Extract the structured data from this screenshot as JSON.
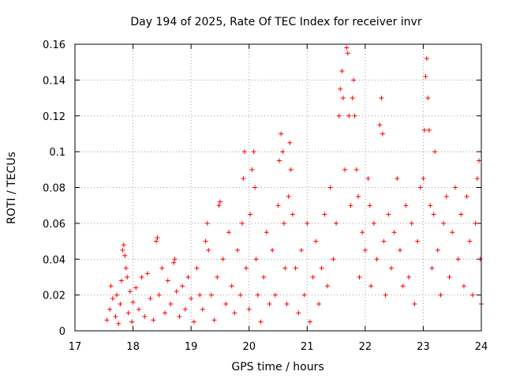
{
  "chart_data": {
    "type": "scatter",
    "title": "Day 194 of 2025, Rate Of TEC Index for receiver invr",
    "xlabel": "GPS time / hours",
    "ylabel": "ROTI / TECUs",
    "xlim": [
      17,
      24
    ],
    "ylim": [
      0,
      0.16
    ],
    "xticks": [
      17,
      18,
      19,
      20,
      21,
      22,
      23,
      24
    ],
    "yticks": [
      0,
      0.02,
      0.04,
      0.06,
      0.08,
      0.1,
      0.12,
      0.14,
      0.16
    ],
    "xtick_labels": [
      "17",
      "18",
      "19",
      "20",
      "21",
      "22",
      "23",
      "24"
    ],
    "ytick_labels": [
      "0",
      "0.02",
      "0.04",
      "0.06",
      "0.08",
      "0.1",
      "0.12",
      "0.14",
      "0.16"
    ],
    "grid": true,
    "marker": "+",
    "color": "#ff0000",
    "series": [
      {
        "name": "ROTI",
        "points": [
          [
            17.55,
            0.006
          ],
          [
            17.6,
            0.012
          ],
          [
            17.62,
            0.025
          ],
          [
            17.65,
            0.018
          ],
          [
            17.7,
            0.008
          ],
          [
            17.72,
            0.02
          ],
          [
            17.75,
            0.004
          ],
          [
            17.78,
            0.015
          ],
          [
            17.8,
            0.028
          ],
          [
            17.82,
            0.045
          ],
          [
            17.84,
            0.048
          ],
          [
            17.86,
            0.042
          ],
          [
            17.88,
            0.035
          ],
          [
            17.9,
            0.03
          ],
          [
            17.92,
            0.01
          ],
          [
            17.95,
            0.022
          ],
          [
            17.98,
            0.005
          ],
          [
            18.0,
            0.016
          ],
          [
            18.05,
            0.024
          ],
          [
            18.1,
            0.012
          ],
          [
            18.15,
            0.03
          ],
          [
            18.2,
            0.008
          ],
          [
            18.25,
            0.032
          ],
          [
            18.3,
            0.018
          ],
          [
            18.35,
            0.006
          ],
          [
            18.4,
            0.05
          ],
          [
            18.42,
            0.052
          ],
          [
            18.45,
            0.02
          ],
          [
            18.5,
            0.035
          ],
          [
            18.55,
            0.01
          ],
          [
            18.6,
            0.028
          ],
          [
            18.65,
            0.015
          ],
          [
            18.7,
            0.038
          ],
          [
            18.72,
            0.04
          ],
          [
            18.75,
            0.022
          ],
          [
            18.8,
            0.008
          ],
          [
            18.85,
            0.025
          ],
          [
            18.9,
            0.012
          ],
          [
            18.95,
            0.03
          ],
          [
            19.0,
            0.018
          ],
          [
            19.05,
            0.005
          ],
          [
            19.1,
            0.035
          ],
          [
            19.15,
            0.02
          ],
          [
            19.2,
            0.012
          ],
          [
            19.25,
            0.05
          ],
          [
            19.28,
            0.06
          ],
          [
            19.3,
            0.045
          ],
          [
            19.35,
            0.02
          ],
          [
            19.4,
            0.006
          ],
          [
            19.45,
            0.03
          ],
          [
            19.48,
            0.07
          ],
          [
            19.5,
            0.072
          ],
          [
            19.55,
            0.04
          ],
          [
            19.6,
            0.015
          ],
          [
            19.65,
            0.055
          ],
          [
            19.7,
            0.025
          ],
          [
            19.75,
            0.01
          ],
          [
            19.8,
            0.045
          ],
          [
            19.85,
            0.02
          ],
          [
            19.88,
            0.06
          ],
          [
            19.9,
            0.085
          ],
          [
            19.92,
            0.1
          ],
          [
            19.95,
            0.035
          ],
          [
            20.0,
            0.012
          ],
          [
            20.02,
            0.065
          ],
          [
            20.05,
            0.09
          ],
          [
            20.08,
            0.1
          ],
          [
            20.1,
            0.08
          ],
          [
            20.12,
            0.04
          ],
          [
            20.15,
            0.02
          ],
          [
            20.2,
            0.005
          ],
          [
            20.25,
            0.03
          ],
          [
            20.3,
            0.055
          ],
          [
            20.35,
            0.015
          ],
          [
            20.4,
            0.045
          ],
          [
            20.45,
            0.02
          ],
          [
            20.5,
            0.07
          ],
          [
            20.52,
            0.095
          ],
          [
            20.55,
            0.11
          ],
          [
            20.58,
            0.1
          ],
          [
            20.6,
            0.06
          ],
          [
            20.62,
            0.035
          ],
          [
            20.65,
            0.015
          ],
          [
            20.68,
            0.075
          ],
          [
            20.7,
            0.105
          ],
          [
            20.72,
            0.09
          ],
          [
            20.75,
            0.065
          ],
          [
            20.8,
            0.035
          ],
          [
            20.85,
            0.01
          ],
          [
            20.9,
            0.045
          ],
          [
            20.95,
            0.02
          ],
          [
            21.0,
            0.06
          ],
          [
            21.05,
            0.005
          ],
          [
            21.1,
            0.03
          ],
          [
            21.15,
            0.05
          ],
          [
            21.2,
            0.015
          ],
          [
            21.25,
            0.035
          ],
          [
            21.3,
            0.065
          ],
          [
            21.35,
            0.025
          ],
          [
            21.4,
            0.08
          ],
          [
            21.45,
            0.04
          ],
          [
            21.5,
            0.06
          ],
          [
            21.55,
            0.12
          ],
          [
            21.57,
            0.135
          ],
          [
            21.6,
            0.145
          ],
          [
            21.62,
            0.13
          ],
          [
            21.65,
            0.09
          ],
          [
            21.68,
            0.158
          ],
          [
            21.7,
            0.155
          ],
          [
            21.72,
            0.12
          ],
          [
            21.75,
            0.07
          ],
          [
            21.78,
            0.13
          ],
          [
            21.8,
            0.14
          ],
          [
            21.82,
            0.12
          ],
          [
            21.85,
            0.09
          ],
          [
            21.88,
            0.075
          ],
          [
            21.9,
            0.03
          ],
          [
            21.95,
            0.055
          ],
          [
            22.0,
            0.045
          ],
          [
            22.05,
            0.085
          ],
          [
            22.08,
            0.07
          ],
          [
            22.1,
            0.025
          ],
          [
            22.15,
            0.06
          ],
          [
            22.2,
            0.04
          ],
          [
            22.25,
            0.115
          ],
          [
            22.28,
            0.13
          ],
          [
            22.3,
            0.11
          ],
          [
            22.32,
            0.05
          ],
          [
            22.35,
            0.02
          ],
          [
            22.4,
            0.065
          ],
          [
            22.45,
            0.035
          ],
          [
            22.5,
            0.055
          ],
          [
            22.55,
            0.085
          ],
          [
            22.6,
            0.045
          ],
          [
            22.65,
            0.025
          ],
          [
            22.7,
            0.07
          ],
          [
            22.75,
            0.03
          ],
          [
            22.8,
            0.06
          ],
          [
            22.85,
            0.015
          ],
          [
            22.9,
            0.05
          ],
          [
            22.95,
            0.08
          ],
          [
            23.0,
            0.085
          ],
          [
            23.02,
            0.112
          ],
          [
            23.04,
            0.142
          ],
          [
            23.06,
            0.152
          ],
          [
            23.08,
            0.13
          ],
          [
            23.1,
            0.112
          ],
          [
            23.12,
            0.07
          ],
          [
            23.15,
            0.035
          ],
          [
            23.18,
            0.065
          ],
          [
            23.2,
            0.1
          ],
          [
            23.25,
            0.045
          ],
          [
            23.3,
            0.02
          ],
          [
            23.35,
            0.06
          ],
          [
            23.4,
            0.075
          ],
          [
            23.45,
            0.03
          ],
          [
            23.5,
            0.055
          ],
          [
            23.55,
            0.08
          ],
          [
            23.6,
            0.04
          ],
          [
            23.65,
            0.065
          ],
          [
            23.7,
            0.025
          ],
          [
            23.75,
            0.075
          ],
          [
            23.8,
            0.05
          ],
          [
            23.85,
            0.02
          ],
          [
            23.9,
            0.06
          ],
          [
            23.93,
            0.085
          ],
          [
            23.96,
            0.095
          ],
          [
            23.98,
            0.04
          ],
          [
            24.0,
            0.015
          ]
        ]
      }
    ]
  }
}
